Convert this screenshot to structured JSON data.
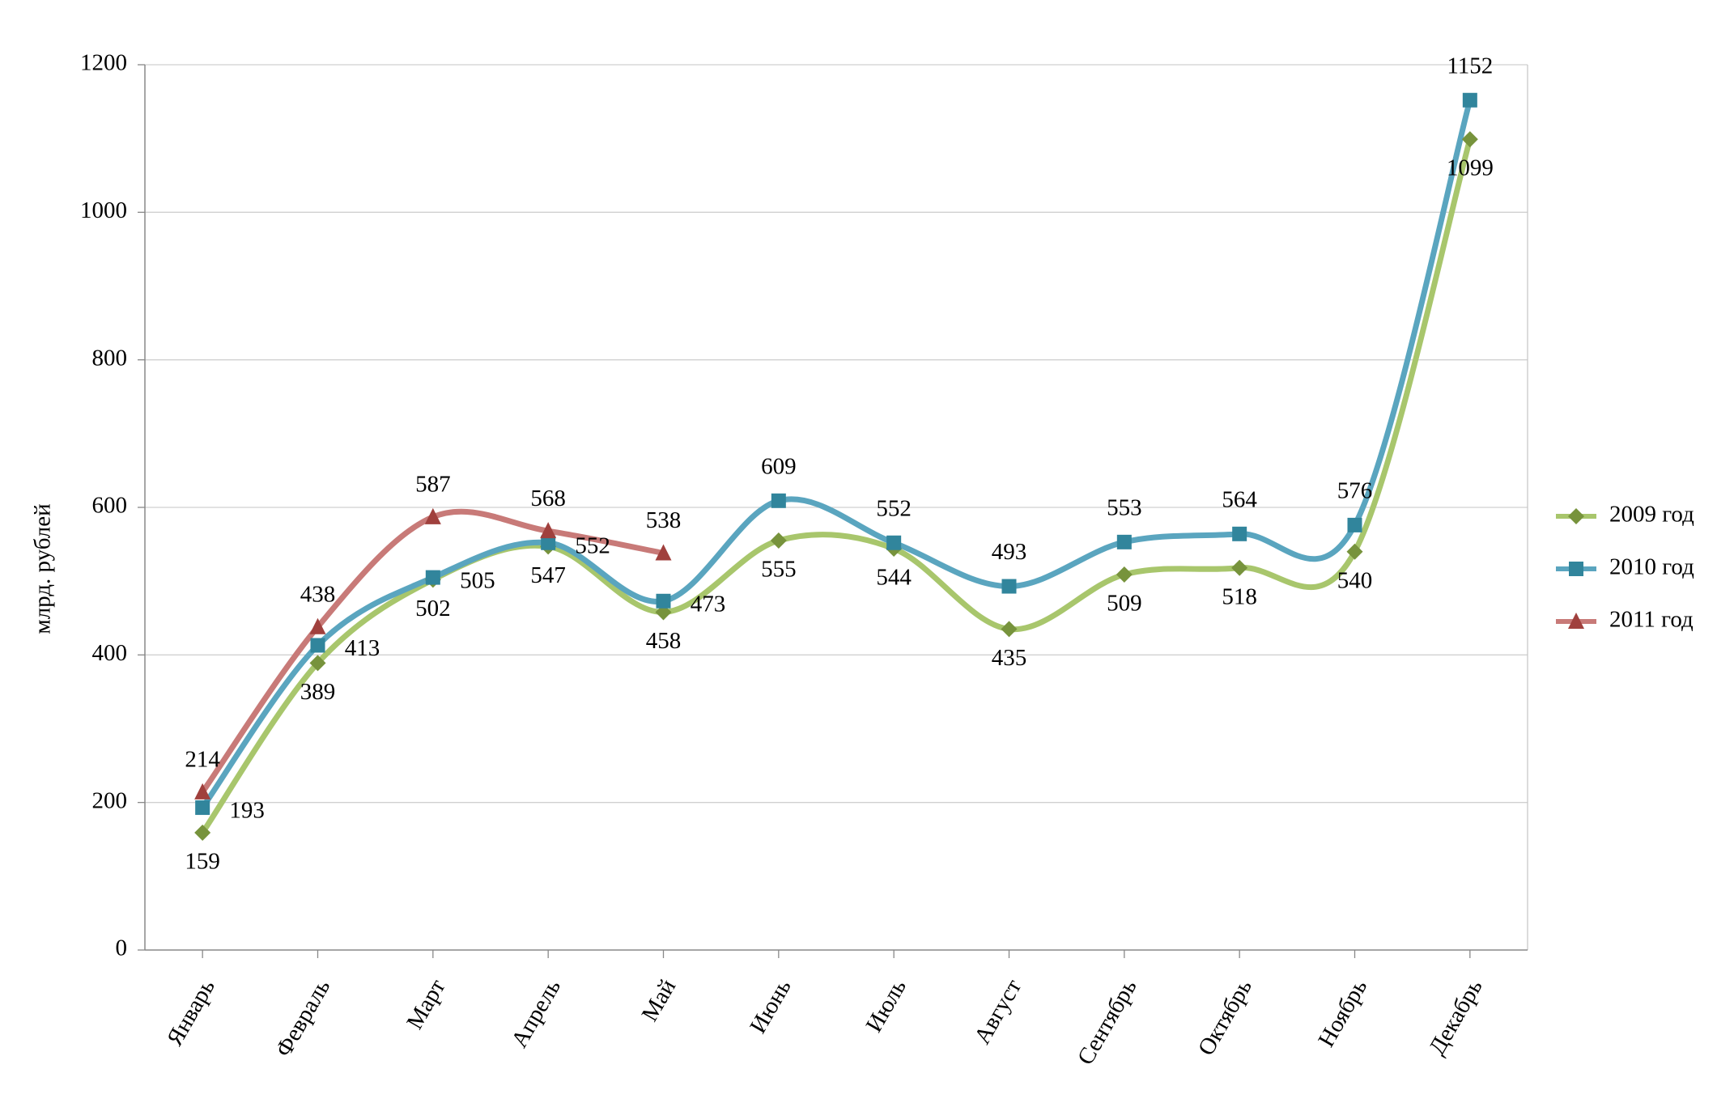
{
  "chart_data": {
    "type": "line",
    "y_label": "млрд. рублей",
    "categories": [
      "Январь",
      "Февраль",
      "Март",
      "Апрель",
      "Май",
      "Июнь",
      "Июль",
      "Август",
      "Сентябрь",
      "Октябрь",
      "Ноябрь",
      "Декабрь"
    ],
    "series": [
      {
        "name": "2009 год",
        "color": "#a8c66c",
        "marker_color": "#77933c",
        "marker": "diamond",
        "label_color": "#1e4a14",
        "values": [
          159,
          389,
          502,
          547,
          458,
          555,
          544,
          435,
          509,
          518,
          540,
          1099
        ]
      },
      {
        "name": "2010 год",
        "color": "#5aa5bf",
        "marker_color": "#31859c",
        "marker": "square",
        "label_color": "#1a1a80",
        "values": [
          193,
          413,
          505,
          552,
          473,
          609,
          552,
          493,
          553,
          564,
          576,
          1152
        ]
      },
      {
        "name": "2011 год",
        "color": "#c87a78",
        "marker_color": "#a0403d",
        "marker": "triangle",
        "label_color": "#7f1a1a",
        "values": [
          214,
          438,
          587,
          568,
          538,
          null,
          null,
          null,
          null,
          null,
          null,
          null
        ]
      }
    ],
    "ylim": [
      0,
      1200
    ],
    "yticks": [
      0,
      200,
      400,
      600,
      800,
      1000,
      1200
    ],
    "grid": true,
    "legend": "right"
  }
}
